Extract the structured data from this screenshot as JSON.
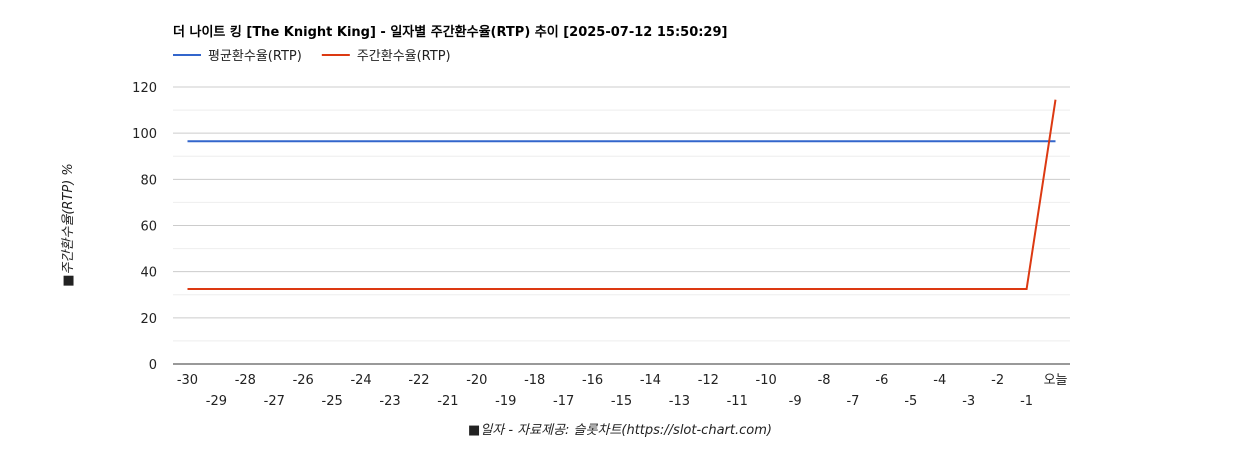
{
  "chart_data": {
    "type": "line",
    "title": "더 나이트 킹 [The Knight King] - 일자별 주간환수율(RTP) 추이 [2025-07-12 15:50:29]",
    "xlabel": "■일자 - 자료제공: 슬롯차트(https://slot-chart.com)",
    "ylabel": "■주간환수율(RTP) %",
    "x": [
      "-30",
      "-29",
      "-28",
      "-27",
      "-26",
      "-25",
      "-24",
      "-23",
      "-22",
      "-21",
      "-20",
      "-19",
      "-18",
      "-17",
      "-16",
      "-15",
      "-14",
      "-13",
      "-12",
      "-11",
      "-10",
      "-9",
      "-8",
      "-7",
      "-6",
      "-5",
      "-4",
      "-3",
      "-2",
      "-1",
      "오늘"
    ],
    "ylim": [
      0,
      120
    ],
    "yticks": [
      0,
      20,
      40,
      60,
      80,
      100,
      120
    ],
    "grid": true,
    "legend_position": "top-left",
    "series": [
      {
        "name": "평균환수율(RTP)",
        "color": "#3366cc",
        "values": [
          96.5,
          96.5,
          96.5,
          96.5,
          96.5,
          96.5,
          96.5,
          96.5,
          96.5,
          96.5,
          96.5,
          96.5,
          96.5,
          96.5,
          96.5,
          96.5,
          96.5,
          96.5,
          96.5,
          96.5,
          96.5,
          96.5,
          96.5,
          96.5,
          96.5,
          96.5,
          96.5,
          96.5,
          96.5,
          96.5,
          96.5
        ]
      },
      {
        "name": "주간환수율(RTP)",
        "color": "#dc3912",
        "values": [
          32.5,
          32.5,
          32.5,
          32.5,
          32.5,
          32.5,
          32.5,
          32.5,
          32.5,
          32.5,
          32.5,
          32.5,
          32.5,
          32.5,
          32.5,
          32.5,
          32.5,
          32.5,
          32.5,
          32.5,
          32.5,
          32.5,
          32.5,
          32.5,
          32.5,
          32.5,
          32.5,
          32.5,
          32.5,
          32.5,
          114.5
        ]
      }
    ]
  }
}
